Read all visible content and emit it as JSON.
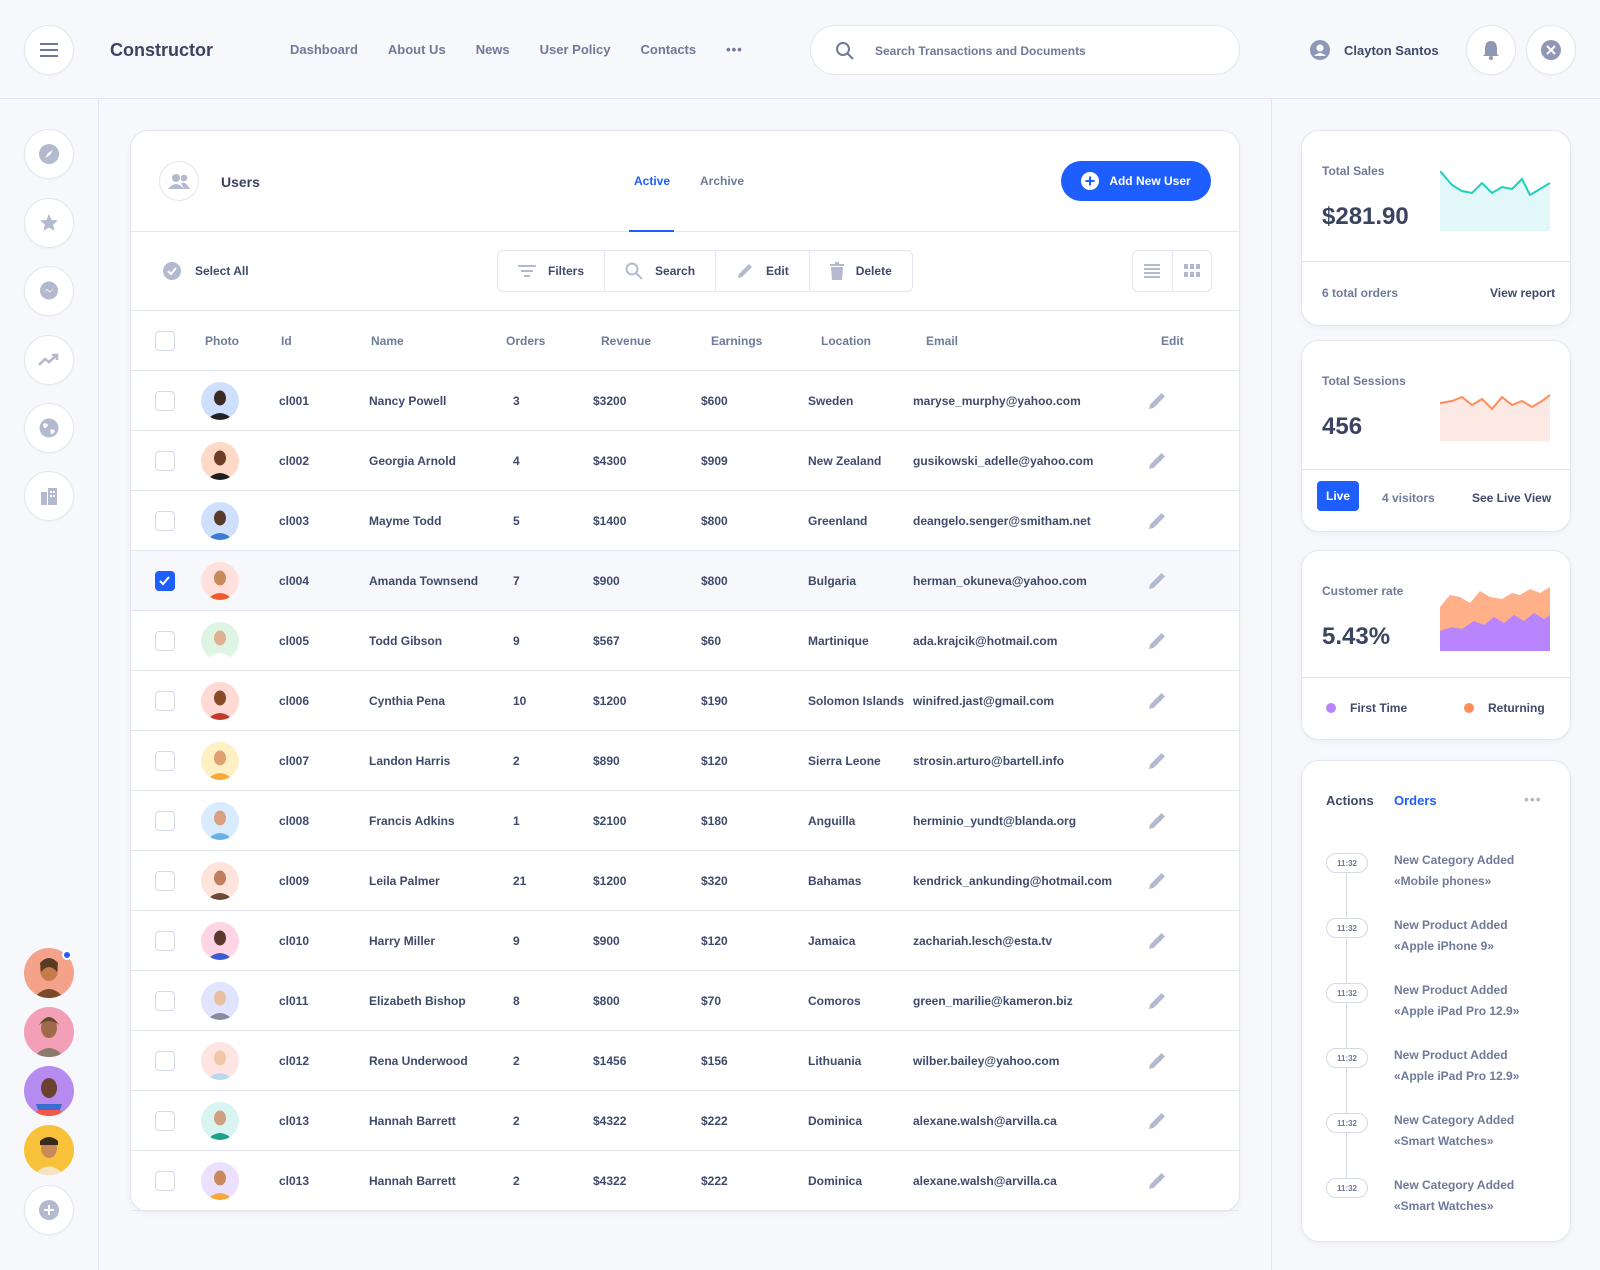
{
  "header": {
    "brand": "Constructor",
    "nav": [
      "Dashboard",
      "About Us",
      "News",
      "User Policy",
      "Contacts"
    ],
    "more_icon": "more-dots-icon",
    "search_placeholder": "Search Transactions and Documents",
    "user_name": "Clayton Santos"
  },
  "sidebar": {
    "icons": [
      "compass-icon",
      "star-icon",
      "messenger-icon",
      "trend-icon",
      "globe-icon",
      "building-icon"
    ],
    "add_icon": "plus-circle-icon"
  },
  "users_panel": {
    "title": "Users",
    "tabs": [
      "Active",
      "Archive"
    ],
    "active_tab": "Active",
    "add_button": "Add New User",
    "select_all": "Select All",
    "toolbar": {
      "filters": "Filters",
      "search": "Search",
      "edit": "Edit",
      "delete": "Delete"
    },
    "columns": {
      "photo": "Photo",
      "id": "Id",
      "name": "Name",
      "orders": "Orders",
      "revenue": "Revenue",
      "earnings": "Earnings",
      "location": "Location",
      "email": "Email",
      "edit": "Edit"
    },
    "rows": [
      {
        "id": "cl001",
        "name": "Nancy Powell",
        "orders": "3",
        "revenue": "$3200",
        "earnings": "$600",
        "location": "Sweden",
        "email": "maryse_murphy@yahoo.com",
        "checked": false
      },
      {
        "id": "cl002",
        "name": "Georgia Arnold",
        "orders": "4",
        "revenue": "$4300",
        "earnings": "$909",
        "location": "New Zealand",
        "email": "gusikowski_adelle@yahoo.com",
        "checked": false
      },
      {
        "id": "cl003",
        "name": "Mayme Todd",
        "orders": "5",
        "revenue": "$1400",
        "earnings": "$800",
        "location": "Greenland",
        "email": "deangelo.senger@smitham.net",
        "checked": false
      },
      {
        "id": "cl004",
        "name": "Amanda Townsend",
        "orders": "7",
        "revenue": "$900",
        "earnings": "$800",
        "location": "Bulgaria",
        "email": "herman_okuneva@yahoo.com",
        "checked": true
      },
      {
        "id": "cl005",
        "name": "Todd Gibson",
        "orders": "9",
        "revenue": "$567",
        "earnings": "$60",
        "location": "Martinique",
        "email": "ada.krajcik@hotmail.com",
        "checked": false
      },
      {
        "id": "cl006",
        "name": "Cynthia Pena",
        "orders": "10",
        "revenue": "$1200",
        "earnings": "$190",
        "location": "Solomon Islands",
        "email": "winifred.jast@gmail.com",
        "checked": false
      },
      {
        "id": "cl007",
        "name": "Landon Harris",
        "orders": "2",
        "revenue": "$890",
        "earnings": "$120",
        "location": "Sierra Leone",
        "email": "strosin.arturo@bartell.info",
        "checked": false
      },
      {
        "id": "cl008",
        "name": "Francis Adkins",
        "orders": "1",
        "revenue": "$2100",
        "earnings": "$180",
        "location": "Anguilla",
        "email": "herminio_yundt@blanda.org",
        "checked": false
      },
      {
        "id": "cl009",
        "name": "Leila Palmer",
        "orders": "21",
        "revenue": "$1200",
        "earnings": "$320",
        "location": "Bahamas",
        "email": "kendrick_ankunding@hotmail.com",
        "checked": false
      },
      {
        "id": "cl010",
        "name": "Harry Miller",
        "orders": "9",
        "revenue": "$900",
        "earnings": "$120",
        "location": "Jamaica",
        "email": "zachariah.lesch@esta.tv",
        "checked": false
      },
      {
        "id": "cl011",
        "name": "Elizabeth Bishop",
        "orders": "8",
        "revenue": "$800",
        "earnings": "$70",
        "location": "Comoros",
        "email": "green_marilie@kameron.biz",
        "checked": false
      },
      {
        "id": "cl012",
        "name": "Rena Underwood",
        "orders": "2",
        "revenue": "$1456",
        "earnings": "$156",
        "location": "Lithuania",
        "email": "wilber.bailey@yahoo.com",
        "checked": false
      },
      {
        "id": "cl013",
        "name": "Hannah Barrett",
        "orders": "2",
        "revenue": "$4322",
        "earnings": "$222",
        "location": "Dominica",
        "email": "alexane.walsh@arvilla.ca",
        "checked": false
      },
      {
        "id": "cl013",
        "name": "Hannah Barrett",
        "orders": "2",
        "revenue": "$4322",
        "earnings": "$222",
        "location": "Dominica",
        "email": "alexane.walsh@arvilla.ca",
        "checked": false
      }
    ]
  },
  "stats": {
    "sales": {
      "label": "Total Sales",
      "value": "$281.90",
      "orders": "6 total orders",
      "link": "View report"
    },
    "sessions": {
      "label": "Total Sessions",
      "value": "456",
      "live": "Live",
      "visitors": "4 visitors",
      "link": "See Live View"
    },
    "customer": {
      "label": "Customer rate",
      "value": "5.43%",
      "legend_first": "First Time",
      "legend_returning": "Returning"
    }
  },
  "activity": {
    "tab_actions": "Actions",
    "tab_orders": "Orders",
    "items": [
      {
        "time": "11:32",
        "title": "New Category Added",
        "detail": "«Mobile phones»"
      },
      {
        "time": "11:32",
        "title": "New Product Added",
        "detail": "«Apple iPhone 9»"
      },
      {
        "time": "11:32",
        "title": "New Product Added",
        "detail": "«Apple iPad Pro 12.9»"
      },
      {
        "time": "11:32",
        "title": "New Product Added",
        "detail": "«Apple iPad Pro 12.9»"
      },
      {
        "time": "11:32",
        "title": "New Category Added",
        "detail": "«Smart Watches»"
      },
      {
        "time": "11:32",
        "title": "New Category Added",
        "detail": "«Smart Watches»"
      }
    ]
  },
  "colors": {
    "accent": "#1e5eff",
    "teal": "#1fd0bf",
    "orange": "#ff8c5a",
    "purple": "#b985ff"
  }
}
